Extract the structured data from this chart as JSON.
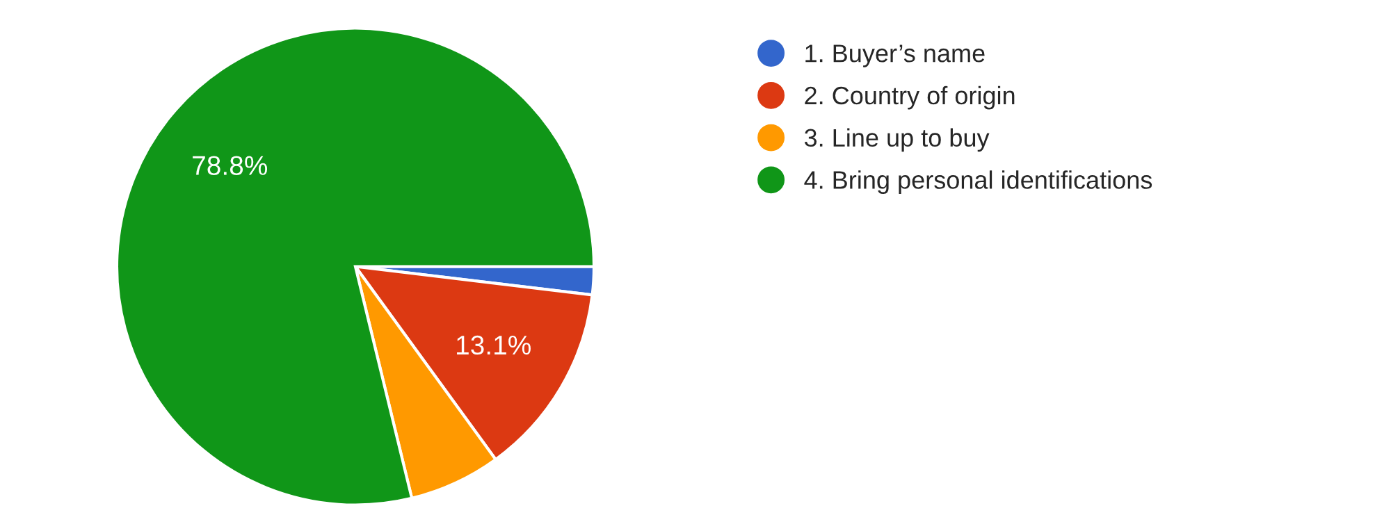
{
  "chart_data": {
    "type": "pie",
    "categories": [
      "1. Buyer’s name",
      "2. Country of origin",
      "3. Line up to buy",
      "4. Bring personal identifications"
    ],
    "values": [
      1.9,
      13.1,
      6.2,
      78.8
    ],
    "colors": [
      "#3366cc",
      "#dc3912",
      "#ff9900",
      "#109618"
    ],
    "value_labels": [
      null,
      "13.1%",
      null,
      "78.8%"
    ],
    "legend": "right"
  }
}
